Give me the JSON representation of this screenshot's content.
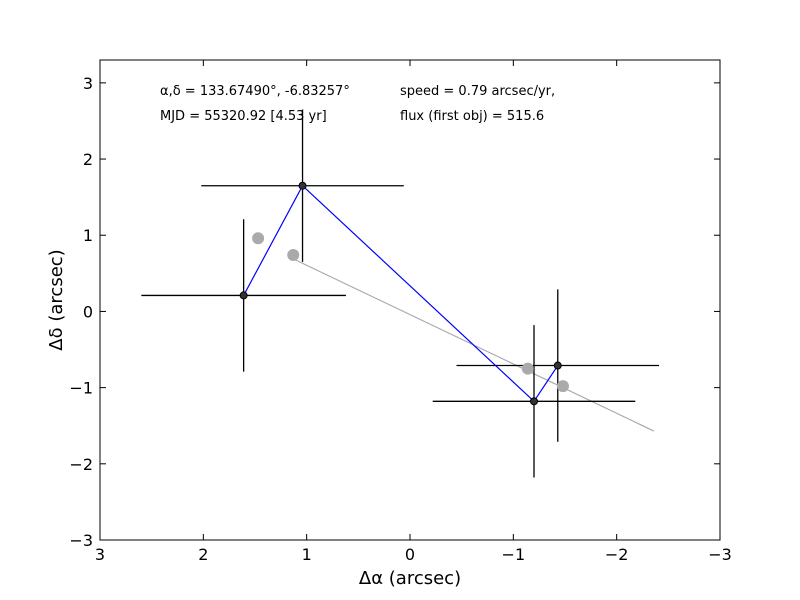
{
  "chart_data": {
    "type": "scatter",
    "xlabel": "Δα (arcsec)",
    "ylabel": "Δδ (arcsec)",
    "xlim": [
      3,
      -3
    ],
    "ylim": [
      -3,
      3.3
    ],
    "x_inverted": true,
    "grid": false,
    "xticks": [
      3,
      2,
      1,
      0,
      -1,
      -2,
      -3
    ],
    "xtick_labels": [
      "3",
      "2",
      "1",
      "0",
      "−1",
      "−2",
      "−3"
    ],
    "yticks": [
      -3,
      -2,
      -1,
      0,
      1,
      2,
      3
    ],
    "ytick_labels": [
      "−3",
      "−2",
      "−1",
      "0",
      "1",
      "2",
      "3"
    ],
    "annotations": {
      "coords": "α,δ = 133.67490°, -6.83257°",
      "mjd": "MJD = 55320.92 [4.53 yr]",
      "speed": "speed = 0.79 arcsec/yr,",
      "flux": "flux (first obj) = 515.6"
    },
    "series": [
      {
        "role": "measured",
        "color": "#0000ff",
        "marker_color": "#000000",
        "points": [
          {
            "x": 1.61,
            "y": 0.21,
            "xerr": 0.99,
            "yerr": 1.0
          },
          {
            "x": 1.04,
            "y": 1.65,
            "xerr": 0.98,
            "yerr": 1.0
          },
          {
            "x": -1.2,
            "y": -1.18,
            "xerr": 0.98,
            "yerr": 1.0
          },
          {
            "x": -1.43,
            "y": -0.71,
            "xerr": 0.98,
            "yerr": 1.0
          }
        ]
      },
      {
        "role": "model",
        "color": "#aaaaaa",
        "points": [
          {
            "x": 1.47,
            "y": 0.96
          },
          {
            "x": 1.13,
            "y": 0.74
          },
          {
            "x": -1.14,
            "y": -0.75
          },
          {
            "x": -1.48,
            "y": -0.98
          }
        ],
        "line": [
          {
            "x": 1.13,
            "y": 0.69
          },
          {
            "x": -2.36,
            "y": -1.57
          }
        ]
      }
    ]
  }
}
